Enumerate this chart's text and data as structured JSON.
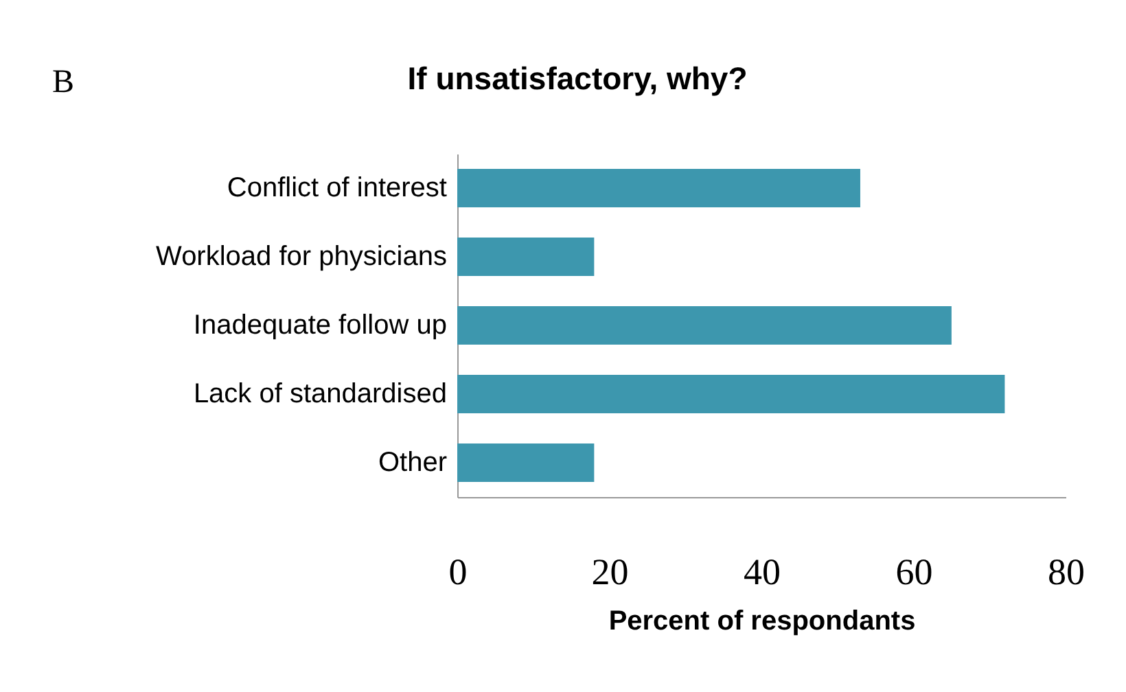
{
  "chart_data": {
    "type": "bar",
    "orientation": "horizontal",
    "title": "If unsatisfactory, why?",
    "xlabel": "Percent of respondants",
    "annotations": [
      "B"
    ],
    "categories": [
      "Conflict of interest",
      "Workload for physicians",
      "Inadequate follow up",
      "Lack of standardised",
      "Other"
    ],
    "values": [
      53,
      18,
      65,
      72,
      18
    ],
    "color": "#3d97ae",
    "xlim": [
      0,
      80
    ],
    "xticks": [
      0,
      20,
      40,
      60,
      80
    ],
    "grid": false
  }
}
